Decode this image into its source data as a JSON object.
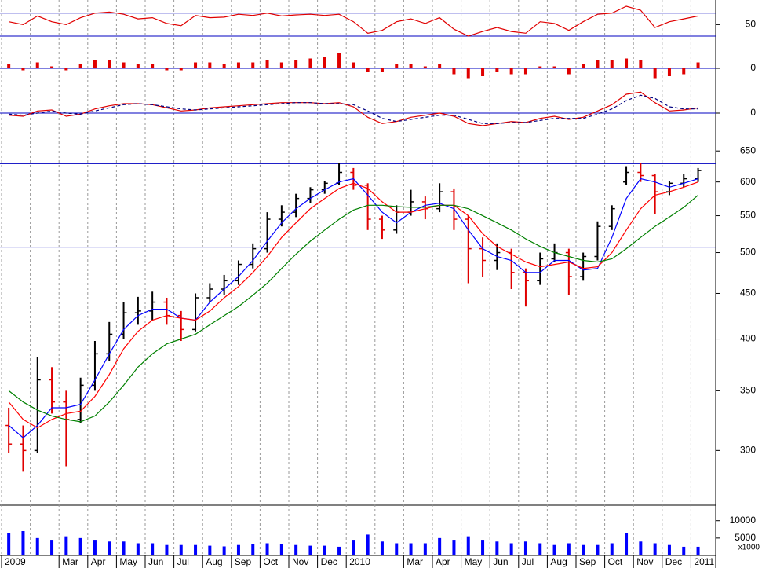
{
  "chart_data": [
    {
      "type": "line",
      "ylim": [
        8,
        93
      ],
      "yticks": [
        50
      ],
      "levels": [
        30,
        70
      ],
      "series": [
        {
          "color": "#e00000",
          "values": [
            55,
            50,
            65,
            55,
            50,
            62,
            70,
            72,
            68,
            60,
            62,
            52,
            48,
            66,
            62,
            63,
            68,
            66,
            70,
            65,
            67,
            68,
            66,
            68,
            55,
            35,
            40,
            55,
            60,
            52,
            62,
            42,
            30,
            38,
            45,
            38,
            35,
            55,
            52,
            40,
            55,
            68,
            70,
            82,
            75,
            45,
            55,
            60,
            65
          ]
        }
      ]
    },
    {
      "type": "bar",
      "ylim": [
        -6,
        10
      ],
      "yticks": [
        0
      ],
      "levels": [
        0
      ],
      "color": "#e00000",
      "values": [
        2,
        -1,
        3,
        1,
        -1,
        2,
        4,
        4,
        3,
        2,
        2,
        -1,
        -1,
        3,
        3,
        2,
        3,
        3,
        4,
        3,
        4,
        5,
        6,
        8,
        3,
        -2,
        -2,
        2,
        2,
        1,
        2,
        -3,
        -5,
        -4,
        -2,
        -3,
        -3,
        1,
        1,
        -3,
        2,
        4,
        4,
        5,
        4,
        -5,
        -4,
        -3,
        3
      ]
    },
    {
      "type": "line",
      "ylim": [
        -30,
        30
      ],
      "yticks": [
        0
      ],
      "levels": [
        0
      ],
      "series": [
        {
          "color": "#e00000",
          "values": [
            -2,
            -3,
            2,
            3,
            -3,
            -1,
            4,
            7,
            9,
            9,
            8,
            5,
            2,
            3,
            5,
            6,
            7,
            8,
            9,
            10,
            10,
            10,
            9,
            10,
            6,
            -4,
            -10,
            -8,
            -4,
            -2,
            0,
            -3,
            -10,
            -12,
            -10,
            -8,
            -9,
            -5,
            -3,
            -6,
            -4,
            2,
            8,
            18,
            20,
            10,
            2,
            3,
            5
          ]
        },
        {
          "color": "#000080",
          "dash": true,
          "values": [
            -1,
            -2,
            0,
            2,
            0,
            -1,
            2,
            5,
            8,
            9,
            8,
            6,
            4,
            3,
            4,
            5,
            6,
            7,
            8,
            9,
            10,
            10,
            9,
            9,
            8,
            2,
            -5,
            -8,
            -6,
            -4,
            -2,
            -2,
            -6,
            -10,
            -10,
            -9,
            -9,
            -7,
            -5,
            -5,
            -5,
            -1,
            4,
            12,
            17,
            14,
            6,
            4,
            4
          ]
        }
      ]
    },
    {
      "type": "candlestick",
      "log_scale": true,
      "ylim": [
        261,
        669
      ],
      "yticks": [
        300,
        350,
        400,
        450,
        500,
        550,
        600,
        650
      ],
      "levels": [
        507,
        629
      ],
      "up_color": "#000000",
      "down_color": "#e00000",
      "open": [
        320,
        305,
        300,
        360,
        340,
        325,
        355,
        385,
        405,
        428,
        430,
        440,
        425,
        410,
        445,
        455,
        465,
        485,
        505,
        545,
        555,
        575,
        588,
        598,
        615,
        595,
        545,
        530,
        555,
        570,
        560,
        585,
        545,
        505,
        490,
        500,
        475,
        465,
        492,
        500,
        470,
        495,
        535,
        600,
        615,
        610,
        585,
        598,
        605
      ],
      "high": [
        335,
        320,
        382,
        372,
        350,
        362,
        398,
        418,
        440,
        446,
        452,
        445,
        430,
        450,
        462,
        472,
        490,
        512,
        555,
        565,
        582,
        592,
        602,
        630,
        622,
        598,
        550,
        565,
        588,
        578,
        598,
        590,
        550,
        520,
        512,
        505,
        480,
        500,
        512,
        505,
        500,
        542,
        565,
        625,
        630,
        612,
        602,
        612,
        622
      ],
      "low": [
        298,
        284,
        298,
        330,
        288,
        322,
        350,
        378,
        400,
        415,
        420,
        415,
        398,
        408,
        440,
        448,
        460,
        480,
        500,
        535,
        548,
        568,
        582,
        595,
        588,
        530,
        518,
        525,
        550,
        545,
        555,
        530,
        462,
        470,
        478,
        455,
        435,
        460,
        488,
        448,
        465,
        490,
        530,
        595,
        600,
        552,
        580,
        592,
        600
      ],
      "close": [
        305,
        300,
        360,
        340,
        325,
        355,
        385,
        405,
        428,
        430,
        440,
        425,
        410,
        445,
        455,
        465,
        485,
        505,
        545,
        555,
        575,
        588,
        598,
        615,
        595,
        545,
        530,
        555,
        570,
        560,
        585,
        545,
        505,
        490,
        500,
        475,
        465,
        492,
        500,
        470,
        495,
        535,
        560,
        615,
        610,
        585,
        598,
        605,
        618
      ],
      "series": [
        {
          "color": "#0000ff",
          "values": [
            320,
            310,
            320,
            335,
            335,
            338,
            360,
            385,
            410,
            425,
            432,
            432,
            422,
            420,
            440,
            455,
            470,
            490,
            515,
            540,
            560,
            575,
            588,
            600,
            605,
            580,
            555,
            540,
            555,
            565,
            568,
            560,
            530,
            505,
            495,
            490,
            475,
            475,
            490,
            490,
            478,
            480,
            520,
            575,
            605,
            600,
            592,
            598,
            605
          ]
        },
        {
          "color": "#ff0000",
          "values": [
            340,
            325,
            318,
            325,
            330,
            332,
            345,
            365,
            390,
            408,
            420,
            425,
            422,
            420,
            430,
            445,
            458,
            475,
            495,
            520,
            540,
            560,
            575,
            590,
            598,
            590,
            570,
            555,
            555,
            560,
            565,
            565,
            550,
            525,
            508,
            498,
            488,
            482,
            485,
            488,
            480,
            482,
            500,
            530,
            560,
            580,
            585,
            592,
            600
          ]
        },
        {
          "color": "#008000",
          "values": [
            350,
            340,
            333,
            328,
            325,
            323,
            328,
            340,
            355,
            372,
            385,
            395,
            400,
            405,
            415,
            425,
            435,
            448,
            462,
            480,
            498,
            515,
            530,
            545,
            558,
            565,
            565,
            563,
            562,
            562,
            565,
            565,
            560,
            550,
            540,
            530,
            518,
            508,
            500,
            495,
            490,
            488,
            492,
            505,
            520,
            535,
            548,
            562,
            580
          ]
        }
      ]
    },
    {
      "type": "bar",
      "ylim": [
        0,
        14000
      ],
      "yticks": [
        5000,
        10000
      ],
      "unit_label": "x1000",
      "color": "#0000ff",
      "categories": [
        "2009",
        null,
        null,
        null,
        "Mar",
        null,
        "Apr",
        null,
        "May",
        null,
        "Jun",
        null,
        "Jul",
        null,
        "Aug",
        null,
        "Sep",
        null,
        "Oct",
        null,
        "Nov",
        null,
        "Dec",
        null,
        "2010",
        null,
        null,
        null,
        "Mar",
        null,
        "Apr",
        null,
        "May",
        null,
        "Jun",
        null,
        "Jul",
        null,
        "Aug",
        null,
        "Sep",
        null,
        "Oct",
        null,
        "Nov",
        null,
        "Dec",
        null,
        "2011"
      ],
      "values": [
        6500,
        7000,
        5000,
        4500,
        5500,
        5000,
        4500,
        4000,
        4000,
        3500,
        3500,
        3000,
        3000,
        3000,
        2800,
        2600,
        3000,
        3200,
        3500,
        3200,
        3000,
        2800,
        2800,
        2500,
        4500,
        6000,
        4000,
        3500,
        3500,
        3500,
        5000,
        4500,
        5500,
        4500,
        4000,
        3500,
        4000,
        3500,
        3000,
        3500,
        3000,
        3000,
        3500,
        6500,
        4000,
        3500,
        3000,
        2500,
        2500
      ]
    }
  ]
}
